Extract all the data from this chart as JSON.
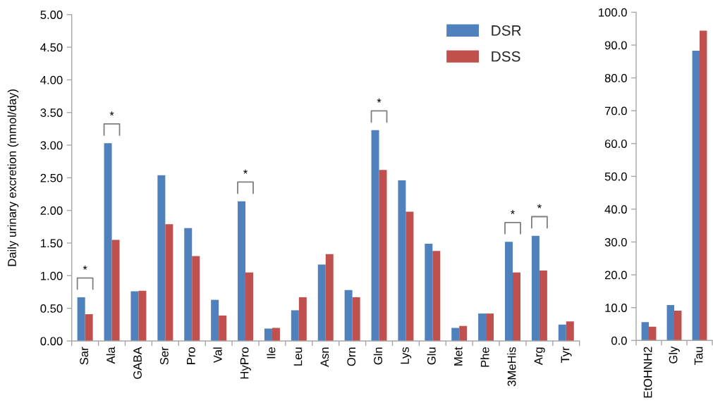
{
  "chart_data": [
    {
      "type": "bar",
      "ylabel": "Daily urinary excretion (mmol/day)",
      "categories": [
        "Sar",
        "Ala",
        "GABA",
        "Ser",
        "Pro",
        "Val",
        "HyPro",
        "Ile",
        "Leu",
        "Asn",
        "Orn",
        "Gln",
        "Lys",
        "Glu",
        "Met",
        "Phe",
        "3MeHis",
        "Arg",
        "Tyr"
      ],
      "series": [
        {
          "name": "DSR",
          "color": "#4f81bd",
          "values": [
            0.67,
            3.03,
            0.76,
            2.54,
            1.73,
            0.63,
            2.14,
            0.19,
            0.47,
            1.17,
            0.78,
            3.23,
            2.46,
            1.49,
            0.2,
            0.42,
            1.52,
            1.61,
            0.25
          ]
        },
        {
          "name": "DSS",
          "color": "#c0504d",
          "values": [
            0.41,
            1.55,
            0.77,
            1.79,
            1.3,
            0.39,
            1.05,
            0.2,
            0.67,
            1.33,
            0.67,
            2.62,
            1.98,
            1.38,
            0.23,
            0.42,
            1.05,
            1.08,
            0.3
          ]
        }
      ],
      "ylim": [
        0,
        5
      ],
      "yticks": [
        {
          "value": 0,
          "label": "0.00"
        },
        {
          "value": 0.5,
          "label": "0.50"
        },
        {
          "value": 1,
          "label": "1.00"
        },
        {
          "value": 1.5,
          "label": "1.50"
        },
        {
          "value": 2,
          "label": "2.00"
        },
        {
          "value": 2.5,
          "label": "2.50"
        },
        {
          "value": 3,
          "label": "3.00"
        },
        {
          "value": 3.5,
          "label": "3.50"
        },
        {
          "value": 4,
          "label": "4.00"
        },
        {
          "value": 4.5,
          "label": "4.50"
        },
        {
          "value": 5,
          "label": "5.00"
        }
      ],
      "legend": "top right",
      "annotations": [
        {
          "text": "*",
          "x": "Sar",
          "y": 0.67
        },
        {
          "text": "*",
          "x": "Ala",
          "y": 3.03
        },
        {
          "text": "*",
          "x": "HyPro",
          "y": 2.14
        },
        {
          "text": "*",
          "x": "Gln",
          "y": 3.23
        },
        {
          "text": "*",
          "x": "3MeHis",
          "y": 1.52
        },
        {
          "text": "*",
          "x": "Arg",
          "y": 1.61
        }
      ]
    },
    {
      "type": "bar",
      "categories": [
        "EtOHNH2",
        "Gly",
        "Tau"
      ],
      "series": [
        {
          "color": "#4f81bd",
          "values": [
            5.6,
            10.8,
            88.3
          ]
        },
        {
          "color": "#c0504d",
          "values": [
            4.2,
            9.1,
            94.4
          ]
        }
      ],
      "ylim": [
        0,
        100
      ],
      "yticks": [
        {
          "value": 0,
          "label": "0.0"
        },
        {
          "value": 10,
          "label": "10.0"
        },
        {
          "value": 20,
          "label": "20.0"
        },
        {
          "value": 30,
          "label": "30.0"
        },
        {
          "value": 40,
          "label": "40.0"
        },
        {
          "value": 50,
          "label": "50.0"
        },
        {
          "value": 60,
          "label": "60.0"
        },
        {
          "value": 70,
          "label": "70.0"
        },
        {
          "value": 80,
          "label": "80.0"
        },
        {
          "value": 90,
          "label": "90.0"
        },
        {
          "value": 100,
          "label": "100.0"
        }
      ]
    }
  ]
}
